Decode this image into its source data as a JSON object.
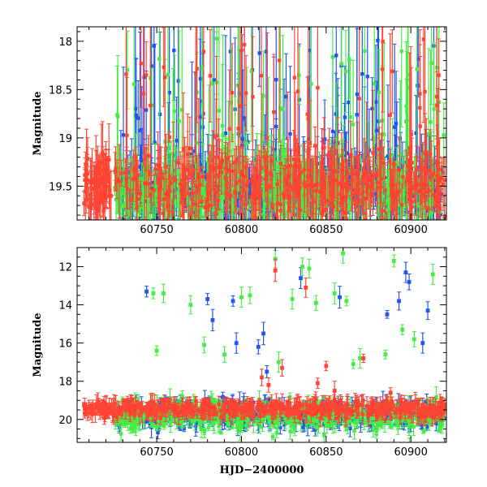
{
  "chart_data": [
    {
      "type": "scatter",
      "panel": "top",
      "xlabel": "",
      "ylabel": "Magnitude",
      "xlim": [
        60703,
        60921
      ],
      "ylim": [
        19.85,
        17.85
      ],
      "y_inverted": true,
      "xticks_major": [
        60750,
        60800,
        60850,
        60900
      ],
      "yticks_major": [
        18,
        18.5,
        19,
        19.5
      ],
      "grid": false,
      "error_bars": true,
      "series": [
        {
          "color": "#2255ee",
          "x_range": [
            60727,
            60920
          ],
          "y_base": 19.55,
          "y_spread": 0.3,
          "outliers_to": 17.9
        },
        {
          "color": "#44ee44",
          "x_range": [
            60725,
            60920
          ],
          "y_base": 19.55,
          "y_spread": 0.3,
          "outliers_to": 17.9
        },
        {
          "color": "#ff4433",
          "x_range": [
            60707,
            60920
          ],
          "y_base": 19.5,
          "y_spread": 0.3,
          "outliers_to": 17.9
        }
      ]
    },
    {
      "type": "scatter",
      "panel": "bottom",
      "xlabel": "HJD−2400000",
      "ylabel": "Magnitude",
      "xlim": [
        60703,
        60921
      ],
      "ylim": [
        21.2,
        11.0
      ],
      "y_inverted": true,
      "xticks_major": [
        60750,
        60800,
        60850,
        60900
      ],
      "yticks_major": [
        12,
        14,
        16,
        18,
        20
      ],
      "grid": false,
      "error_bars": true,
      "series": [
        {
          "color": "#2255ee",
          "x_range": [
            60727,
            60920
          ],
          "y_base": 19.7,
          "y_spread": 0.6,
          "bright_points": [
            [
              60744,
              13.3
            ],
            [
              60780,
              13.7
            ],
            [
              60783,
              14.8
            ],
            [
              60795,
              13.8
            ],
            [
              60797,
              16.0
            ],
            [
              60810,
              16.2
            ],
            [
              60813,
              15.5
            ],
            [
              60815,
              17.5
            ],
            [
              60835,
              12.6
            ],
            [
              60858,
              13.6
            ],
            [
              60886,
              14.5
            ],
            [
              60893,
              13.8
            ],
            [
              60897,
              12.3
            ],
            [
              60899,
              12.8
            ],
            [
              60907,
              16.0
            ],
            [
              60910,
              14.3
            ]
          ]
        },
        {
          "color": "#44ee44",
          "x_range": [
            60725,
            60920
          ],
          "y_base": 19.8,
          "y_spread": 0.7,
          "bright_points": [
            [
              60748,
              13.4
            ],
            [
              60754,
              13.4
            ],
            [
              60750,
              16.4
            ],
            [
              60770,
              14.0
            ],
            [
              60778,
              16.1
            ],
            [
              60790,
              16.6
            ],
            [
              60800,
              13.6
            ],
            [
              60805,
              13.5
            ],
            [
              60820,
              11.6
            ],
            [
              60822,
              17.0
            ],
            [
              60830,
              13.7
            ],
            [
              60836,
              12.0
            ],
            [
              60840,
              12.1
            ],
            [
              60844,
              13.9
            ],
            [
              60855,
              13.4
            ],
            [
              60860,
              11.3
            ],
            [
              60862,
              13.8
            ],
            [
              60866,
              17.1
            ],
            [
              60870,
              16.8
            ],
            [
              60885,
              16.6
            ],
            [
              60890,
              11.7
            ],
            [
              60895,
              15.3
            ],
            [
              60902,
              15.8
            ],
            [
              60913,
              12.4
            ]
          ]
        },
        {
          "color": "#ff4433",
          "x_range": [
            60707,
            60920
          ],
          "y_base": 19.45,
          "y_spread": 0.4,
          "bright_points": [
            [
              60812,
              17.8
            ],
            [
              60816,
              18.2
            ],
            [
              60820,
              12.2
            ],
            [
              60824,
              17.3
            ],
            [
              60838,
              13.1
            ],
            [
              60845,
              18.1
            ],
            [
              60850,
              17.2
            ],
            [
              60855,
              18.5
            ],
            [
              60872,
              16.8
            ],
            [
              60888,
              18.6
            ]
          ]
        }
      ]
    }
  ]
}
